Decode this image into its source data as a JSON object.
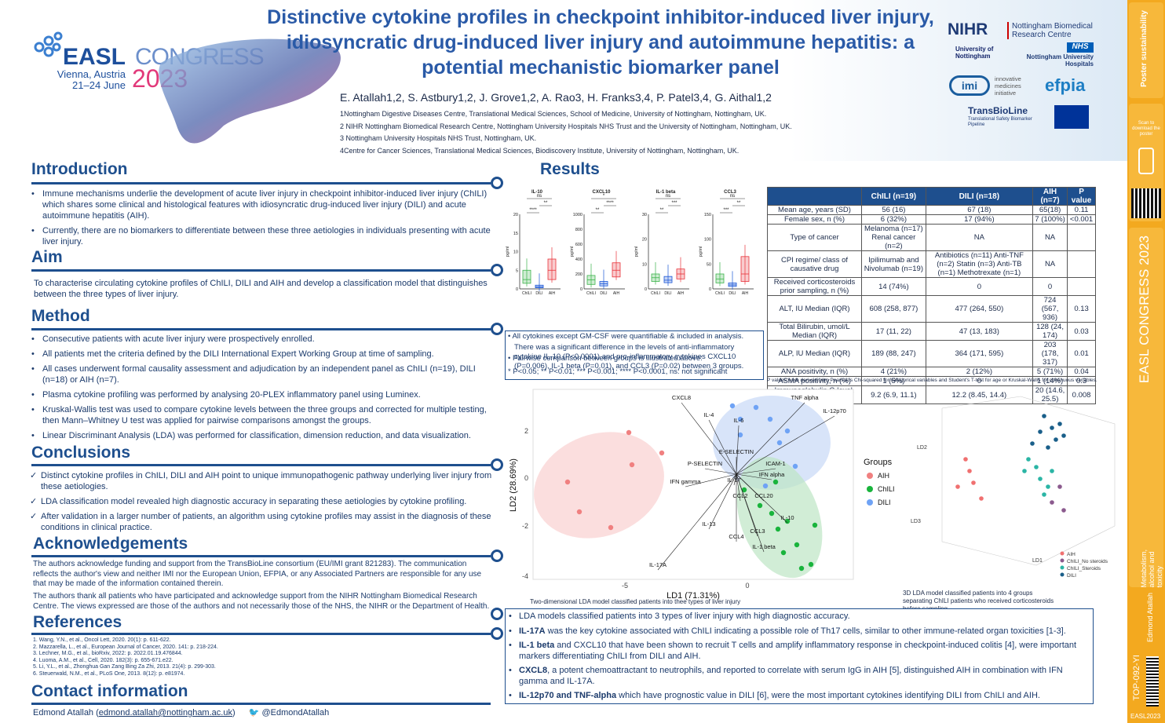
{
  "header": {
    "title": "Distinctive cytokine profiles in checkpoint inhibitor-induced liver injury, idiosyncratic drug-induced liver injury and autoimmune hepatitis: a potential mechanistic biomarker panel",
    "authors": "E. Atallah1,2, S. Astbury1,2, J. Grove1,2, A. Rao3, H. Franks3,4, P. Patel3,4, G. Aithal1,2",
    "affiliations": [
      "1Nottingham Digestive Diseases Centre, Translational Medical Sciences, School of Medicine, University of Nottingham, Nottingham, UK.",
      "2 NIHR Nottingham Biomedical Research Centre, Nottingham University Hospitals NHS Trust and the University of Nottingham, Nottingham, UK.",
      "3 Nottingham University Hospitals NHS Trust, Nottingham, UK.",
      "4Centre for Cancer Sciences, Translational Medical Sciences, Biodiscovery Institute, University of Nottingham, Nottingham, UK."
    ],
    "easl": {
      "name": "EASL",
      "congress": "CONGRESS",
      "city": "Vienna, Austria",
      "dates": "21–24 June",
      "year": "2023"
    },
    "logos": {
      "nihr": "NIHR",
      "nihr_sub": "Nottingham Biomedical Research Centre",
      "uon": "University of Nottingham",
      "nhs": "NHS",
      "nhs_sub": "Nottingham University Hospitals",
      "imi": "imi",
      "imi_sub": "innovative medicines initiative",
      "efpia": "efpia",
      "tbl": "TransBioLine",
      "tbl_sub": "Translational Safety Biomarker Pipeline"
    }
  },
  "sections": {
    "introduction": {
      "title": "Introduction",
      "items": [
        "Immune mechanisms underlie the development of acute liver injury in checkpoint inhibitor-induced liver injury (ChILI) which shares some clinical and histological features with idiosyncratic drug-induced liver injury (DILI) and acute autoimmune hepatitis (AIH).",
        "Currently, there are no biomarkers to differentiate between these three aetiologies in individuals presenting with acute liver injury."
      ]
    },
    "aim": {
      "title": "Aim",
      "text": "To characterise circulating cytokine profiles of ChILI, DILI and AIH and develop a classification model that distinguishes between the three types of liver injury."
    },
    "method": {
      "title": "Method",
      "items": [
        "Consecutive patients with acute liver injury were prospectively enrolled.",
        "All patients met the criteria defined by the DILI International Expert Working Group at time of sampling.",
        "All cases underwent formal causality assessment and adjudication by an independent panel as ChILI (n=19), DILI (n=18) or AIH (n=7).",
        "Plasma cytokine profiling was performed by analysing 20-PLEX inflammatory panel using Luminex.",
        "Kruskal-Wallis test was used to compare cytokine levels between the three groups and corrected for multiple testing, then Mann–Whitney U test was applied for pairwise comparisons amongst the groups.",
        "Linear Discriminant Analysis (LDA) was performed for classification, dimension reduction, and data visualization."
      ]
    },
    "conclusions": {
      "title": "Conclusions",
      "items": [
        "Distinct cytokine profiles in ChILI, DILI and AIH point to unique immunopathogenic pathway underlying liver injury from these aetiologies.",
        "LDA classification model revealed high diagnostic accuracy in separating these aetiologies by cytokine profiling.",
        "After validation in a larger number of patients, an algorithm using cytokine profiles may assist in the diagnosis of these conditions in clinical practice."
      ]
    },
    "acknowledgements": {
      "title": "Acknowledgements",
      "p1": "The authors acknowledge funding and support from the TransBioLine consortium (EU/IMI grant 821283). The communication reflects the author's view and neither IMI nor the European Union, EFPIA, or any Associated Partners are responsible for any use that may be made of the information contained therein.",
      "p2": "The authors thank all patients who have participated and acknowledge support from the NIHR Nottingham Biomedical Research Centre. The views expressed are those of the authors and not necessarily those of the NHS, the NIHR or the Department of Health."
    },
    "references": {
      "title": "References",
      "items": [
        "1. Wang, Y.N., et al., Oncol Lett, 2020. 20(1): p. 611-622.",
        "2. Mazzarella, L., et al., European Journal of Cancer, 2020. 141: p. 218-224.",
        "3. Lechner, M.G., et al., bioRxiv, 2022: p. 2022.01.19.476844.",
        "4. Luoma, A.M., et al., Cell, 2020. 182(3): p. 655-671.e22.",
        "5. Li, Y.L., et al., Zhonghua Gan Zang Bing Za Zhi, 2013. 21(4): p. 299-303.",
        "6. Steuerwald, N.M., et al., PLoS One, 2013. 8(12): p. e81974."
      ]
    },
    "contact": {
      "title": "Contact information",
      "name": "Edmond Atallah (",
      "email": "edmond.atallah@nottingham.ac.uk",
      "close": ")",
      "twitter": "@EdmondAtallah"
    },
    "results": {
      "title": "Results"
    }
  },
  "boxplots": {
    "ylabel": "pg/ml",
    "groups": [
      "ChILI",
      "DILI",
      "AIH"
    ],
    "colors": [
      "#3cb44b",
      "#1a56d6",
      "#e8333a"
    ],
    "panels": [
      {
        "name": "IL-10",
        "yticks": [
          "0",
          "5",
          "10",
          "15",
          "20"
        ],
        "ymax": 20,
        "sig": [
          "****",
          "**",
          "ns"
        ],
        "box": [
          [
            1.5,
            2.5,
            5
          ],
          [
            0.3,
            0.6,
            1
          ],
          [
            2.5,
            5,
            8
          ]
        ]
      },
      {
        "name": "CXCL10",
        "yticks": [
          "0",
          "200",
          "400",
          "600",
          "800",
          "1000"
        ],
        "ymax": 1000,
        "sig": [
          "**",
          "****",
          "*"
        ],
        "box": [
          [
            60,
            120,
            180
          ],
          [
            40,
            70,
            100
          ],
          [
            160,
            250,
            350
          ]
        ]
      },
      {
        "name": "IL-1 beta",
        "yticks": [
          "0",
          "10",
          "20",
          "30"
        ],
        "ymax": 30,
        "sig": [
          "**",
          "***",
          "ns"
        ],
        "box": [
          [
            3,
            4.5,
            6
          ],
          [
            2.5,
            3.5,
            5
          ],
          [
            4,
            6,
            8
          ]
        ]
      },
      {
        "name": "CCL3",
        "yticks": [
          "0",
          "50",
          "100",
          "150"
        ],
        "ymax": 150,
        "sig": [
          "***",
          "**",
          "ns"
        ],
        "box": [
          [
            12,
            20,
            30
          ],
          [
            5,
            8,
            12
          ],
          [
            15,
            30,
            65
          ]
        ]
      }
    ]
  },
  "stats_notes": [
    "All cytokines except GM-CSF were quantifiable & included in analysis.",
    "There was a significant difference in the levels of anti-inflammatory cytokine IL-10 (P<0.0001) and pro-inflammatory cytokines CXCL10 (P=0.006), IL-1 beta (P=0.01), and CCL3 (P=0.02) between 3 groups.",
    "Pairwise comparison between groups is illustrated above:",
    "* P<0.05; ** P<0.01; *** P<0.001; **** P<0.0001, ns: not significant"
  ],
  "table": {
    "headers": [
      "",
      "ChILI (n=19)",
      "DILI (n=18)",
      "AIH (n=7)",
      "P value"
    ],
    "rows": [
      [
        "Mean age, years (SD)",
        "56 (16)",
        "67 (18)",
        "65(18)",
        "0.11"
      ],
      [
        "Female sex, n (%)",
        "6 (32%)",
        "17 (94%)",
        "7 (100%)",
        "<0.001"
      ],
      [
        "Type of cancer",
        "Melanoma (n=17) Renal cancer (n=2)",
        "NA",
        "NA",
        ""
      ],
      [
        "CPI regime/ class of causative drug",
        "Ipilimumab and Nivolumab (n=19)",
        "Antibiotics (n=11) Anti-TNF (n=2) Statin (n=3) Anti-TB (n=1) Methotrexate (n=1)",
        "NA",
        ""
      ],
      [
        "Received corticosteroids prior sampling, n (%)",
        "14 (74%)",
        "0",
        "0",
        ""
      ],
      [
        "ALT, IU Median (IQR)",
        "608 (258, 877)",
        "477 (264, 550)",
        "724 (567, 936)",
        "0.13"
      ],
      [
        "Total Bilirubin, umol/L Median (IQR)",
        "17 (11, 22)",
        "47 (13, 183)",
        "128 (24, 174)",
        "0.03"
      ],
      [
        "ALP, IU Median (IQR)",
        "189 (88, 247)",
        "364 (171, 595)",
        "203 (178, 317)",
        "0.01"
      ],
      [
        "ANA positivity, n (%)",
        "4 (21%)",
        "2 (12%)",
        "5 (71%)",
        "0.04"
      ],
      [
        "ASMA positivity, n (%)",
        "1 (5%)",
        "0",
        "1 (14%)",
        "0.3"
      ],
      [
        "Immunoglobulin G level, Median (IQR)",
        "9.2 (6.9, 11.1)",
        "12.2 (8.45, 14.4)",
        "20 (14.6, 25.5)",
        "0.008"
      ]
    ],
    "note": "P values were derived from Pearson's Chi-squared for categorical variables and Student's T-test for age or Kruskal-Wallis for continuous variables."
  },
  "lda2d": {
    "xlabel": "LD1 (71.31%)",
    "ylabel": "LD2 (28.69%)",
    "xticks": [
      "-5",
      "0"
    ],
    "yticks": [
      "2",
      "0",
      "-2",
      "-4"
    ],
    "legend_title": "Groups",
    "legend": [
      "AIH",
      "ChILI",
      "DILI"
    ],
    "colors": {
      "AIH": "#f08080",
      "ChILI": "#19b43c",
      "DILI": "#6fa3f5"
    },
    "labels": [
      "CXCL8",
      "IL-4",
      "TNF alpha",
      "IL-12p70",
      "IL-6",
      "E-SELECTIN",
      "P-SELECTIN",
      "ICAM-1",
      "IFN alpha",
      "IFN gamma",
      "CCL20",
      "IL-17",
      "CCL2",
      "IL-10",
      "IL-13",
      "CCL3",
      "CCL4",
      "IL-1 beta",
      "IL-17A"
    ],
    "caption": "Two-dimensional LDA model classified patients into thee types of liver injury"
  },
  "lda3d": {
    "axes": [
      "LD1",
      "LD2",
      "LD3"
    ],
    "legend": [
      "AIH",
      "ChILI_No steroids",
      "ChILI_Steroids",
      "DILI"
    ],
    "colors": [
      "#f07070",
      "#8b5a8e",
      "#2bb5a5",
      "#1a5f8a"
    ],
    "caption": "3D LDA model classified patients into 4 groups separating ChILI patients who received corticosteroids before sampling"
  },
  "findings": [
    {
      "b": "",
      "t": "LDA models classified patients into 3 types of liver injury with high diagnostic accuracy."
    },
    {
      "b": "IL-17A",
      "t": " was the key cytokine associated with ChILI indicating a possible role of Th17 cells, similar to other immune-related organ toxicities [1-3]."
    },
    {
      "b": "IL-1 beta",
      "t": " and CXCL10 that have been shown to recruit T cells and amplify inflammatory response in checkpoint-induced colitis [4], were important markers differentiating ChILI from DILI and AIH."
    },
    {
      "b": "CXCL8",
      "t": ", a potent chemoattractant to neutrophils, and reported to correlate with serum IgG in AIH [5], distinguished AIH in combination with IFN gamma and IL-17A."
    },
    {
      "b": "IL-12p70 and TNF-alpha",
      "t": " which have prognostic value in DILI [6], were the most important cytokines identifying DILI from ChILI and AIH."
    }
  ],
  "sidebar": {
    "scan": "Scan to download the poster",
    "topic": "Metabolism, alcohol and toxicity",
    "author": "Edmond Atallah",
    "code": "TOP-092-YI",
    "footer": "EASL2023"
  }
}
